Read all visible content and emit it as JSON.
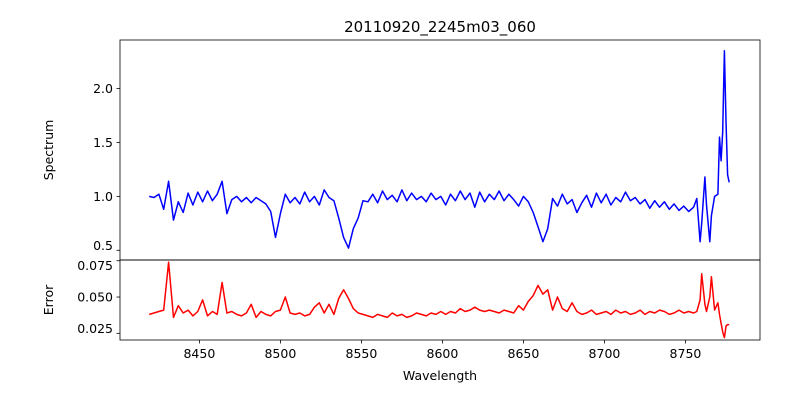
{
  "chart_data": {
    "type": "line",
    "title": "20110920_2245m03_060",
    "xlabel": "Wavelength",
    "xlim": [
      8401,
      8796
    ],
    "xticks": [
      8450,
      8500,
      8550,
      8600,
      8650,
      8700,
      8750
    ],
    "xtick_labels": [
      "8450",
      "8500",
      "8550",
      "8600",
      "8650",
      "8700",
      "8750"
    ],
    "x": [
      8419,
      8422,
      8425,
      8428,
      8431,
      8434,
      8437,
      8440,
      8443,
      8446,
      8449,
      8452,
      8455,
      8458,
      8461,
      8464,
      8467,
      8470,
      8473,
      8476,
      8479,
      8482,
      8485,
      8488,
      8491,
      8494,
      8497,
      8500,
      8503,
      8506,
      8509,
      8512,
      8515,
      8518,
      8521,
      8524,
      8527,
      8530,
      8533,
      8536,
      8539,
      8542,
      8545,
      8548,
      8551,
      8554,
      8557,
      8560,
      8563,
      8566,
      8569,
      8572,
      8575,
      8578,
      8581,
      8584,
      8587,
      8590,
      8593,
      8596,
      8599,
      8602,
      8605,
      8608,
      8611,
      8614,
      8617,
      8620,
      8623,
      8626,
      8629,
      8632,
      8635,
      8638,
      8641,
      8644,
      8647,
      8650,
      8653,
      8656,
      8659,
      8662,
      8665,
      8668,
      8671,
      8674,
      8677,
      8680,
      8683,
      8686,
      8689,
      8692,
      8695,
      8698,
      8701,
      8704,
      8707,
      8710,
      8713,
      8716,
      8719,
      8722,
      8725,
      8728,
      8731,
      8734,
      8737,
      8740,
      8743,
      8746,
      8749,
      8752,
      8755,
      8757,
      8759,
      8760,
      8762,
      8763,
      8765,
      8766,
      8768,
      8770,
      8771,
      8772,
      8773,
      8774,
      8775,
      8776,
      8777
    ],
    "panels": [
      {
        "name": "spectrum",
        "ylabel": "Spectrum",
        "color": "#0000ff",
        "ylim": [
          0.41,
          2.45
        ],
        "yticks": [
          0.5,
          1.0,
          1.5,
          2.0
        ],
        "ytick_labels": [
          "0.5",
          "1.0",
          "1.5",
          "2.0"
        ],
        "y": [
          1.0,
          0.99,
          1.02,
          0.88,
          1.14,
          0.78,
          0.95,
          0.85,
          1.03,
          0.92,
          1.04,
          0.95,
          1.05,
          0.96,
          1.02,
          1.14,
          0.84,
          0.97,
          1.0,
          0.95,
          0.99,
          0.94,
          0.99,
          0.96,
          0.93,
          0.86,
          0.62,
          0.84,
          1.02,
          0.94,
          0.99,
          0.93,
          1.04,
          0.95,
          1.0,
          0.92,
          1.06,
          0.99,
          0.96,
          0.8,
          0.62,
          0.52,
          0.7,
          0.8,
          0.96,
          0.95,
          1.02,
          0.94,
          1.05,
          0.97,
          1.01,
          0.95,
          1.06,
          0.96,
          1.03,
          0.97,
          1.0,
          0.95,
          1.03,
          0.97,
          1.0,
          0.92,
          1.02,
          0.96,
          1.05,
          0.97,
          1.03,
          0.9,
          1.04,
          0.95,
          1.02,
          0.97,
          1.05,
          0.96,
          1.02,
          0.97,
          0.91,
          1.0,
          0.95,
          0.85,
          0.72,
          0.58,
          0.7,
          0.98,
          0.91,
          1.02,
          0.93,
          0.97,
          0.85,
          0.94,
          1.01,
          0.9,
          1.03,
          0.94,
          1.02,
          0.92,
          0.99,
          0.95,
          1.04,
          0.96,
          0.99,
          0.93,
          0.97,
          0.89,
          0.96,
          0.9,
          0.95,
          0.88,
          0.93,
          0.87,
          0.91,
          0.86,
          0.9,
          0.98,
          0.58,
          0.75,
          1.18,
          0.92,
          0.58,
          0.82,
          1.0,
          1.02,
          1.55,
          1.33,
          1.6,
          2.35,
          1.7,
          1.2,
          1.13
        ]
      },
      {
        "name": "error",
        "ylabel": "Error",
        "color": "#ff0000",
        "ylim": [
          0.0204,
          0.0755
        ],
        "yticks": [
          0.025,
          0.05,
          0.075
        ],
        "ytick_labels": [
          "0.025",
          "0.050",
          "0.075"
        ],
        "y": [
          0.038,
          0.039,
          0.04,
          0.041,
          0.074,
          0.036,
          0.044,
          0.039,
          0.041,
          0.037,
          0.04,
          0.048,
          0.037,
          0.04,
          0.038,
          0.06,
          0.039,
          0.04,
          0.038,
          0.037,
          0.039,
          0.045,
          0.036,
          0.04,
          0.038,
          0.037,
          0.04,
          0.041,
          0.05,
          0.039,
          0.038,
          0.039,
          0.037,
          0.038,
          0.043,
          0.046,
          0.039,
          0.045,
          0.038,
          0.049,
          0.055,
          0.049,
          0.042,
          0.039,
          0.038,
          0.037,
          0.036,
          0.038,
          0.037,
          0.036,
          0.039,
          0.037,
          0.038,
          0.036,
          0.037,
          0.039,
          0.038,
          0.037,
          0.039,
          0.038,
          0.04,
          0.038,
          0.04,
          0.039,
          0.042,
          0.04,
          0.041,
          0.043,
          0.041,
          0.04,
          0.041,
          0.04,
          0.039,
          0.041,
          0.04,
          0.039,
          0.044,
          0.041,
          0.047,
          0.051,
          0.058,
          0.052,
          0.055,
          0.041,
          0.05,
          0.042,
          0.04,
          0.046,
          0.04,
          0.038,
          0.039,
          0.041,
          0.038,
          0.039,
          0.04,
          0.038,
          0.041,
          0.039,
          0.04,
          0.038,
          0.039,
          0.041,
          0.038,
          0.04,
          0.039,
          0.041,
          0.04,
          0.038,
          0.039,
          0.041,
          0.039,
          0.04,
          0.039,
          0.04,
          0.048,
          0.066,
          0.045,
          0.04,
          0.05,
          0.064,
          0.041,
          0.046,
          0.038,
          0.032,
          0.026,
          0.022,
          0.03,
          0.031,
          0.031
        ]
      }
    ]
  }
}
